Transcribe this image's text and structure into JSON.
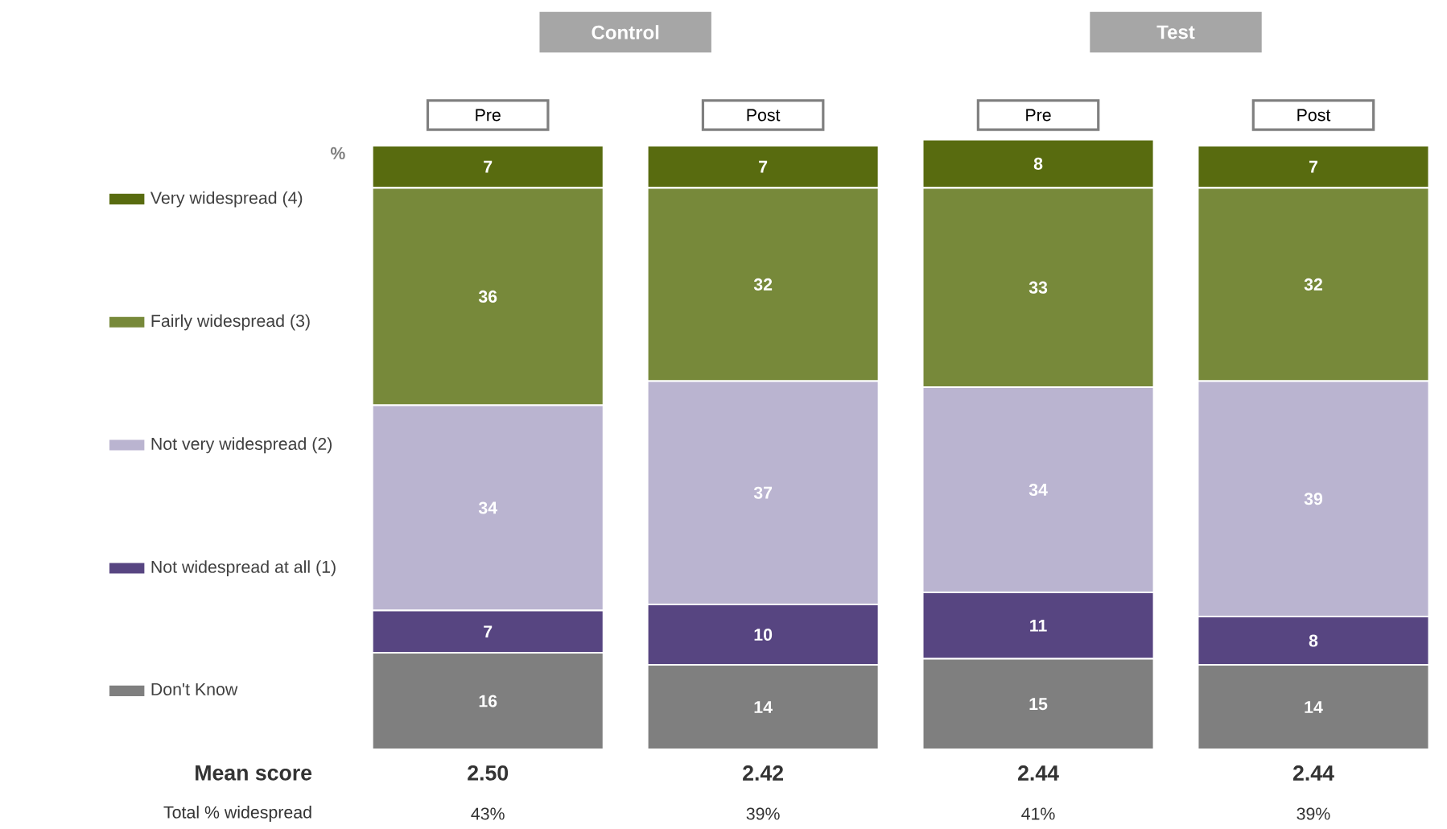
{
  "chart_data": {
    "type": "bar",
    "stacked": true,
    "data_labels": true,
    "legend": "left",
    "tick_labels": "x",
    "ylabel": "%",
    "categories": [
      "Pre",
      "Post",
      "Pre",
      "Post"
    ],
    "series": [
      {
        "name": "Don't Know",
        "color": "#7f7f7f",
        "values": [
          16,
          14,
          15,
          14
        ]
      },
      {
        "name": "Not widespread at all (1)",
        "color": "#574581",
        "values": [
          7,
          10,
          11,
          8
        ]
      },
      {
        "name": "Not very widespread (2)",
        "color": "#bab4d0",
        "values": [
          34,
          37,
          34,
          39
        ]
      },
      {
        "name": "Fairly widespread (3)",
        "color": "#77893a",
        "values": [
          36,
          32,
          33,
          32
        ]
      },
      {
        "name": "Very widespread (4)",
        "color": "#586b0f",
        "values": [
          7,
          7,
          8,
          7
        ]
      }
    ],
    "annotations": [
      "Control",
      "Test",
      "Mean score",
      "2.50",
      "2.42",
      "2.44",
      "2.44",
      "Total % widespread",
      "43%",
      "39%",
      "41%",
      "39%"
    ]
  }
}
